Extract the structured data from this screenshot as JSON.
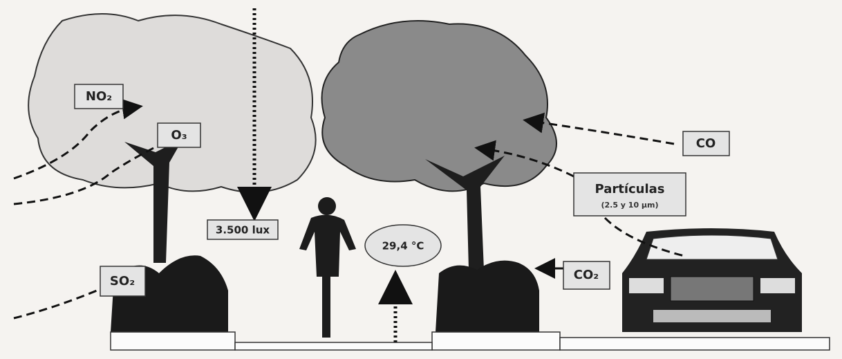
{
  "nodes": [
    {
      "label": "NO₂"
    },
    {
      "label": "O₃"
    },
    {
      "label": "SO₂"
    },
    {
      "label": "CO"
    },
    {
      "label": "Partículas",
      "sublabel": "(2.5 y 10 µm)"
    },
    {
      "label": "3.500 lux"
    },
    {
      "label": "29,4 °C"
    },
    {
      "label": "CO₂"
    }
  ]
}
